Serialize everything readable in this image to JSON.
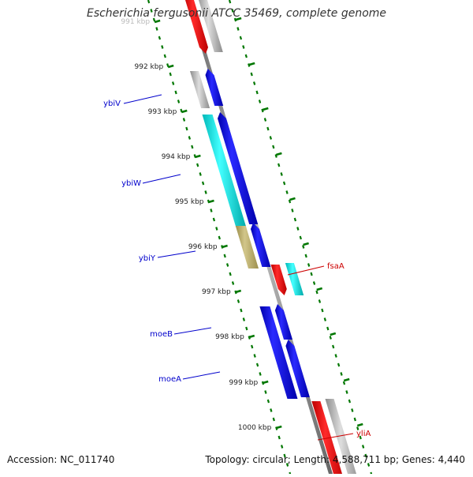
{
  "title": "Escherichia fergusonii ATCC 35469, complete genome",
  "accession_text": "Accession: NC_011740",
  "summary_text": "Topology: circular; Length: 4,588,711 bp; Genes: 4,440",
  "colors": {
    "forward_label": "#0000cc",
    "reverse_label": "#cc0000",
    "tick": "#007700",
    "axis": "#888888",
    "blue": "#0000dd",
    "red": "#ff0000",
    "cyan": "#00dddd",
    "olive": "#bcb06c",
    "gray": "#b0b0b0"
  },
  "ticks": [
    {
      "label": "991 kbp",
      "faded": true
    },
    {
      "label": "992 kbp"
    },
    {
      "label": "993 kbp"
    },
    {
      "label": "994 kbp"
    },
    {
      "label": "995 kbp"
    },
    {
      "label": "996 kbp"
    },
    {
      "label": "997 kbp"
    },
    {
      "label": "998 kbp"
    },
    {
      "label": "999 kbp"
    },
    {
      "label": "1000 kbp"
    }
  ],
  "gene_labels": [
    {
      "name": "ybiV",
      "strand": "forward"
    },
    {
      "name": "ybiW",
      "strand": "forward"
    },
    {
      "name": "ybiY",
      "strand": "forward"
    },
    {
      "name": "moeB",
      "strand": "forward"
    },
    {
      "name": "moeA",
      "strand": "forward"
    },
    {
      "name": "fsaA",
      "strand": "reverse"
    },
    {
      "name": "yliA",
      "strand": "reverse"
    }
  ]
}
